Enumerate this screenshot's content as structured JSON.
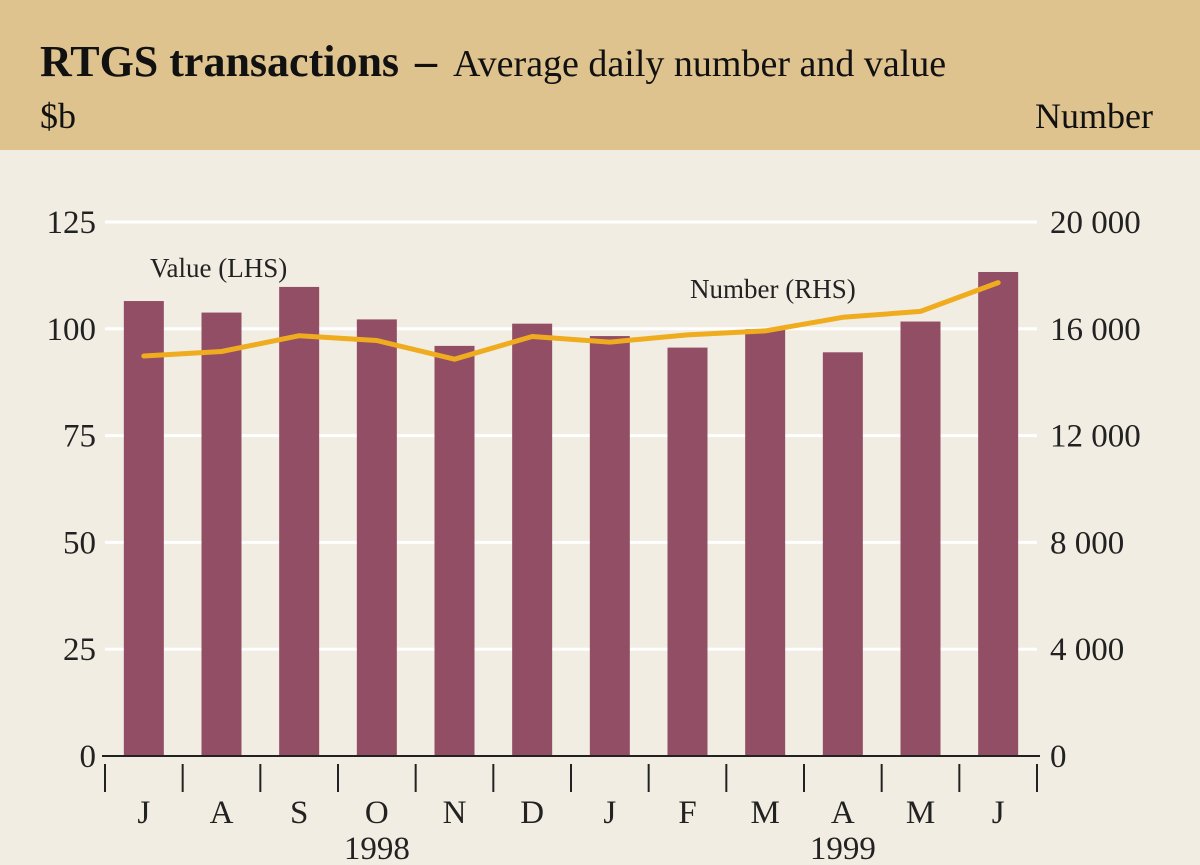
{
  "chart_data": {
    "type": "bar+line",
    "title": "RTGS transactions",
    "title_separator": "–",
    "subtitle": "Average daily number and value",
    "left_unit": "$b",
    "right_unit": "Number",
    "categories": [
      "J",
      "A",
      "S",
      "O",
      "N",
      "D",
      "J",
      "F",
      "M",
      "A",
      "M",
      "J"
    ],
    "years": [
      {
        "label": "1998",
        "after_category_index": 3
      },
      {
        "label": "1999",
        "after_category_index": 9
      }
    ],
    "left_axis": {
      "ylim": [
        0,
        125
      ],
      "ticks": [
        "0",
        "25",
        "50",
        "75",
        "100",
        "125"
      ],
      "tick_values": [
        0,
        25,
        50,
        75,
        100,
        125
      ]
    },
    "right_axis": {
      "ylim": [
        0,
        20000
      ],
      "ticks": [
        "0",
        "4 000",
        "8 000",
        "12 000",
        "16 000",
        "20 000"
      ],
      "tick_values": [
        0,
        4000,
        8000,
        12000,
        16000,
        20000
      ]
    },
    "series": [
      {
        "name": "Value (LHS)",
        "type": "bar",
        "axis": "left",
        "color": "#924e64",
        "values": [
          106.5,
          103.8,
          109.8,
          102.2,
          96.0,
          101.2,
          98.3,
          95.6,
          99.9,
          94.5,
          101.7,
          113.3
        ]
      },
      {
        "name": "Number (RHS)",
        "type": "line",
        "axis": "right",
        "color": "#f0ac1f",
        "values": [
          14980,
          15150,
          15740,
          15560,
          14860,
          15710,
          15500,
          15770,
          15920,
          16430,
          16650,
          17730
        ]
      }
    ],
    "colors": {
      "header": "#dfc38e",
      "plot_background": "#f2ede2",
      "grid": "#ffffff",
      "axis": "#222222"
    }
  }
}
